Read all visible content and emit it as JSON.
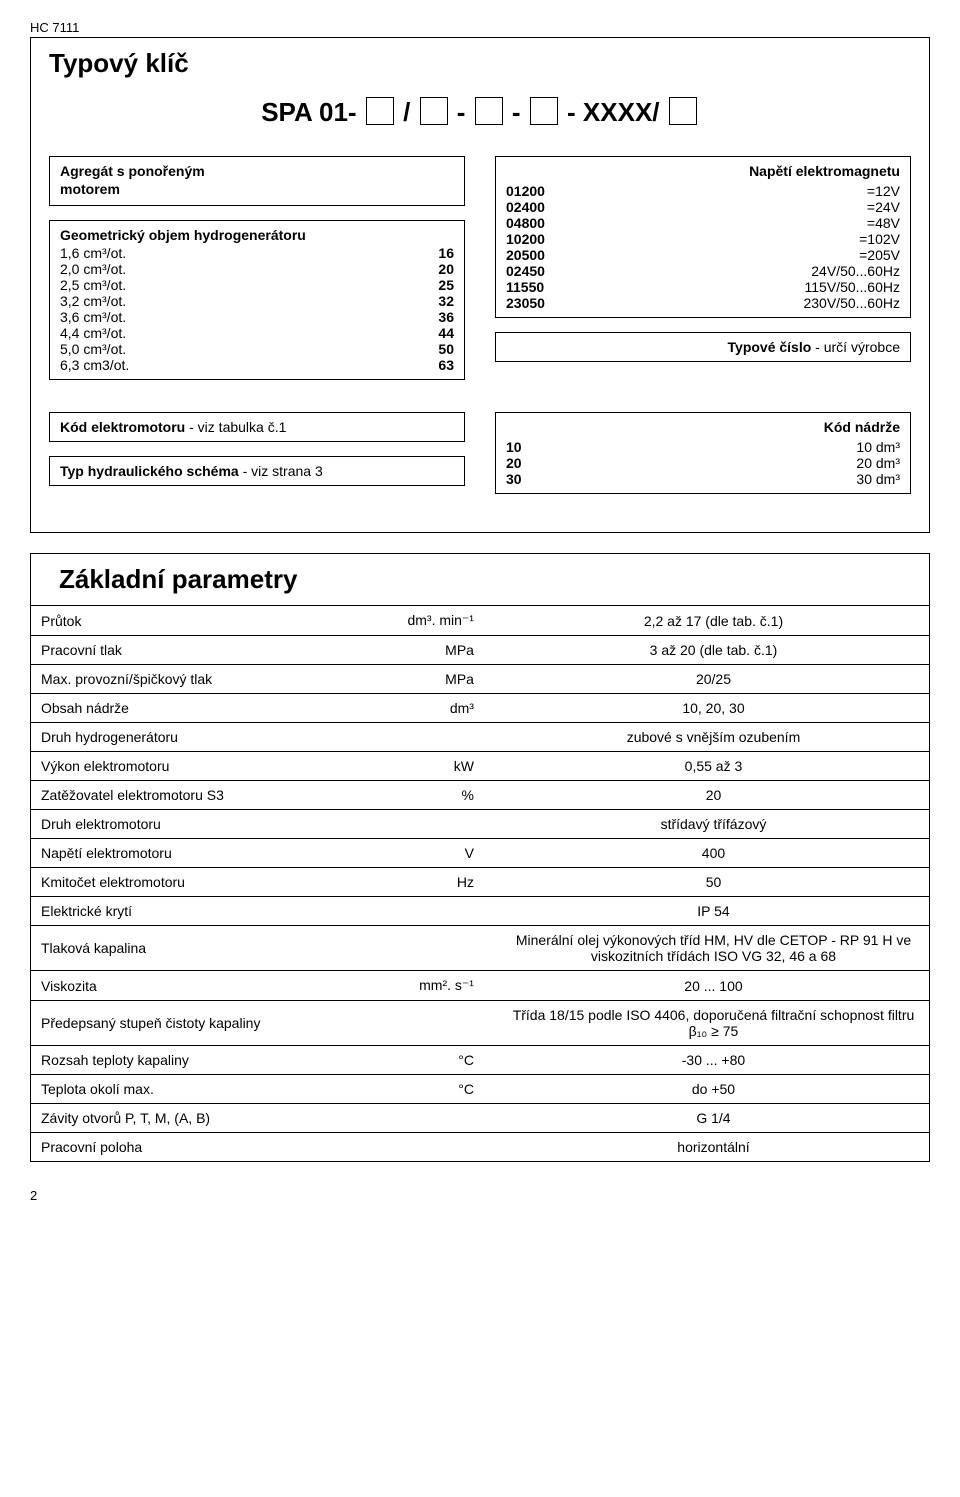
{
  "doc_code": "HC 7111",
  "type_key": {
    "title": "Typový klíč",
    "spa_label": "SPA 01-",
    "sep1": "/",
    "sep2": "-",
    "sep3": "-",
    "xxxx": "- XXXX/",
    "aggregate_box": {
      "line1": "Agregát s ponořeným",
      "line2": "motorem"
    },
    "geometry_box": {
      "title": "Geometrický objem hydrogenerátoru",
      "rows": [
        {
          "k": "1,6 cm³/ot.",
          "v": "16"
        },
        {
          "k": "2,0 cm³/ot.",
          "v": "20"
        },
        {
          "k": "2,5 cm³/ot.",
          "v": "25"
        },
        {
          "k": "3,2 cm³/ot.",
          "v": "32"
        },
        {
          "k": "3,6 cm³/ot.",
          "v": "36"
        },
        {
          "k": "4,4 cm³/ot.",
          "v": "44"
        },
        {
          "k": "5,0 cm³/ot.",
          "v": "50"
        },
        {
          "k": "6,3 cm3/ot.",
          "v": "63"
        }
      ]
    },
    "voltage_box": {
      "title": "Napětí elektromagnetu",
      "rows": [
        {
          "k": "01200",
          "v": "=12V"
        },
        {
          "k": "02400",
          "v": "=24V"
        },
        {
          "k": "04800",
          "v": "=48V"
        },
        {
          "k": "10200",
          "v": "=102V"
        },
        {
          "k": "20500",
          "v": "=205V"
        },
        {
          "k": "02450",
          "v": "24V/50...60Hz"
        },
        {
          "k": "11550",
          "v": "115V/50...60Hz"
        },
        {
          "k": "23050",
          "v": "230V/50...60Hz"
        }
      ]
    },
    "type_number_box": {
      "bold": "Typové číslo",
      "rest": " - určí výrobce"
    },
    "motor_code_box": {
      "bold": "Kód elektromotoru",
      "rest": " - viz tabulka č.1"
    },
    "schema_box": {
      "bold": "Typ hydraulického schéma",
      "rest": " - viz strana 3"
    },
    "tank_box": {
      "title": "Kód nádrže",
      "rows": [
        {
          "k": "10",
          "v": "10 dm³"
        },
        {
          "k": "20",
          "v": "20 dm³"
        },
        {
          "k": "30",
          "v": "30 dm³"
        }
      ]
    }
  },
  "params": {
    "title": "Základní parametry",
    "rows": [
      {
        "label": "Průtok",
        "unit": "dm³. min⁻¹",
        "value": "2,2 až 17 (dle tab. č.1)"
      },
      {
        "label": "Pracovní tlak",
        "unit": "MPa",
        "value": "3 až 20 (dle tab. č.1)"
      },
      {
        "label": "Max. provozní/špičkový tlak",
        "unit": "MPa",
        "value": "20/25"
      },
      {
        "label": "Obsah nádrže",
        "unit": "dm³",
        "value": "10, 20, 30"
      },
      {
        "label": "Druh hydrogenerátoru",
        "unit": "",
        "value": "zubové s vnějším ozubením"
      },
      {
        "label": "Výkon elektromotoru",
        "unit": "kW",
        "value": "0,55 až 3"
      },
      {
        "label": "Zatěžovatel elektromotoru S3",
        "unit": "%",
        "value": "20"
      },
      {
        "label": "Druh elektromotoru",
        "unit": "",
        "value": "střídavý třífázový"
      },
      {
        "label": "Napětí elektromotoru",
        "unit": "V",
        "value": "400"
      },
      {
        "label": "Kmitočet elektromotoru",
        "unit": "Hz",
        "value": "50"
      },
      {
        "label": "Elektrické krytí",
        "unit": "",
        "value": "IP 54"
      },
      {
        "label": "Tlaková kapalina",
        "unit": "",
        "value": "Minerální olej výkonových tříd HM, HV dle CETOP - RP 91 H ve viskozitních třídách ISO VG 32, 46 a 68"
      },
      {
        "label": "Viskozita",
        "unit": "mm². s⁻¹",
        "value": "20 ... 100"
      },
      {
        "label": "Předepsaný stupeň čistoty kapaliny",
        "unit": "",
        "value": "Třída 18/15 podle ISO 4406, doporučená filtrační schopnost filtru β₁₀ ≥ 75"
      },
      {
        "label": "Rozsah teploty kapaliny",
        "unit": "°C",
        "value": "-30 ... +80"
      },
      {
        "label": "Teplota okolí max.",
        "unit": "°C",
        "value": "do +50"
      },
      {
        "label": "Závity otvorů P, T, M, (A, B)",
        "unit": "",
        "value": "G 1/4"
      },
      {
        "label": "Pracovní poloha",
        "unit": "",
        "value": "horizontální"
      }
    ]
  },
  "page_number": "2"
}
